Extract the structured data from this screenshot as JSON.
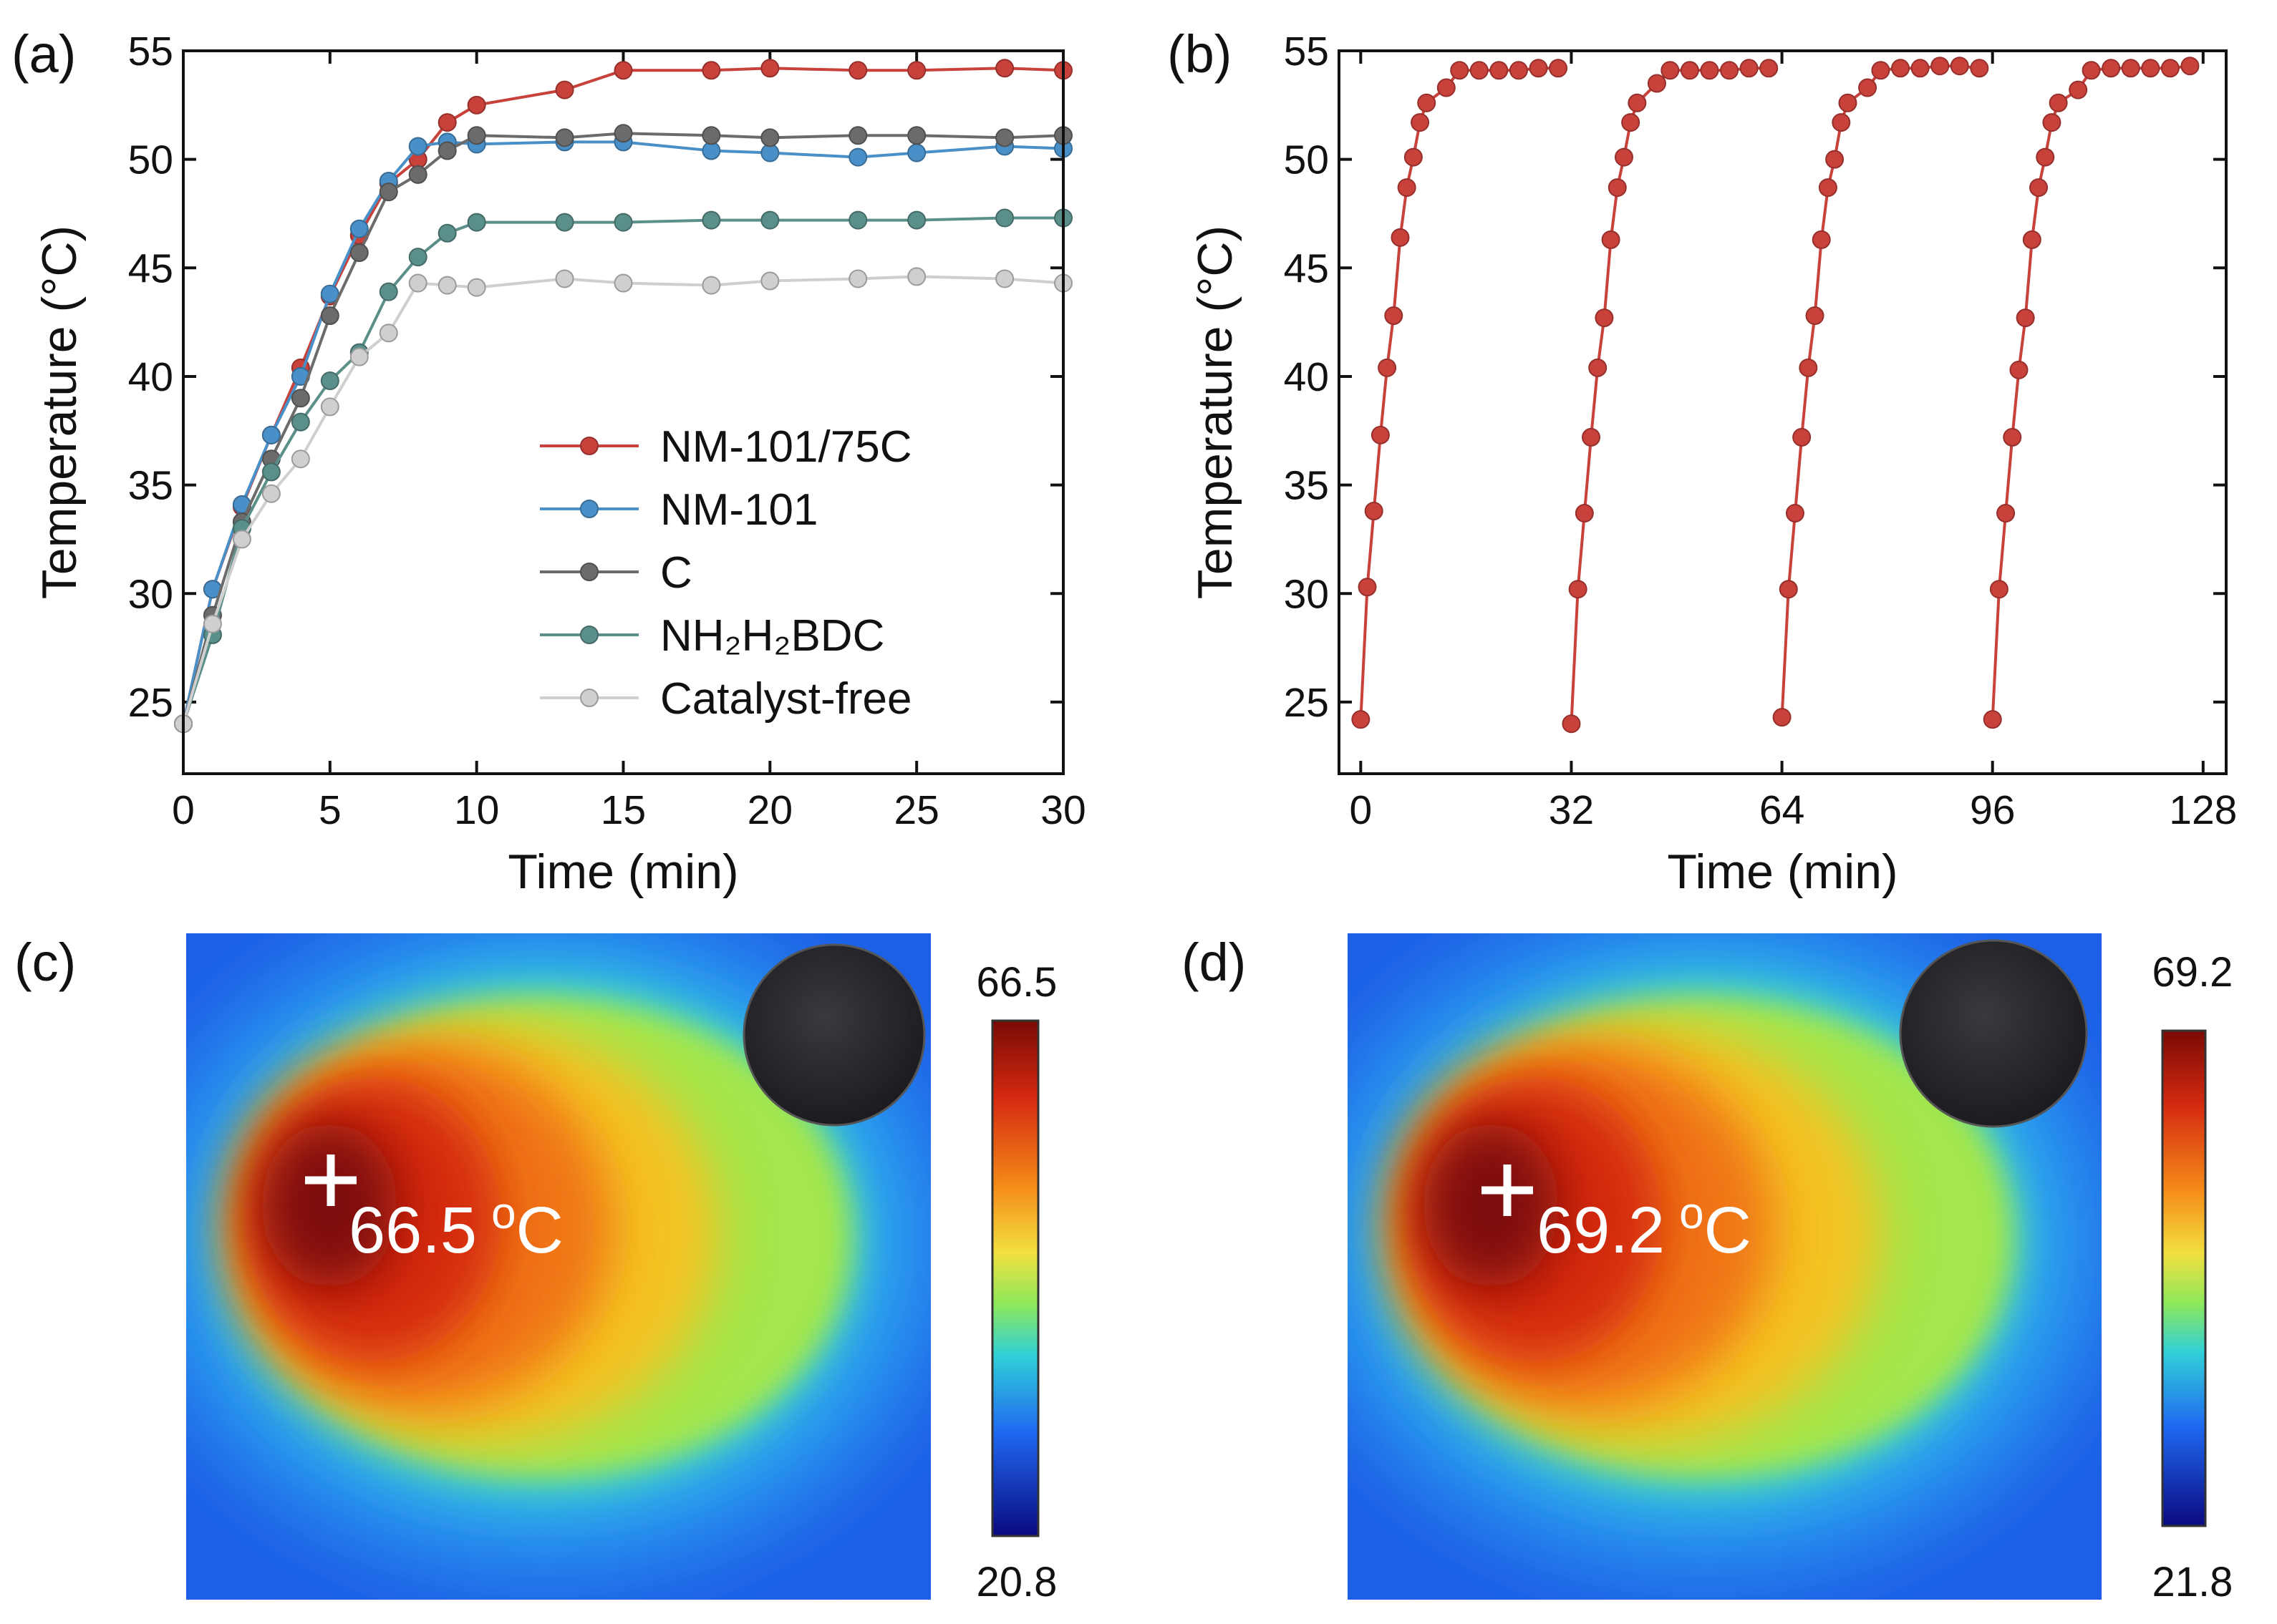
{
  "chart_data": [
    {
      "type": "line",
      "label": "(a)",
      "x_label": "Time (min)",
      "y_label": "Temperature (°C)",
      "x": [
        0,
        1,
        2,
        3,
        4,
        5,
        6,
        7,
        8,
        9,
        10,
        13,
        15,
        18,
        20,
        23,
        25,
        28,
        30
      ],
      "xlim": [
        0,
        30
      ],
      "xticks": [
        0,
        5,
        10,
        15,
        20,
        25,
        30
      ],
      "ylim": [
        21.7,
        55
      ],
      "yticks": [
        25,
        30,
        35,
        40,
        45,
        50,
        55
      ],
      "legend_position": "lower right",
      "series": [
        {
          "name": "NM-101/75C",
          "color": "#c8413b",
          "values": [
            24,
            30.2,
            34,
            37.3,
            40.4,
            43.7,
            46.5,
            48.9,
            50.0,
            51.7,
            52.5,
            53.2,
            54.1,
            54.1,
            54.2,
            54.1,
            54.1,
            54.2,
            54.1
          ]
        },
        {
          "name": "NM-101",
          "color": "#4a90c8",
          "values": [
            24,
            30.2,
            34.1,
            37.3,
            40.0,
            43.8,
            46.8,
            49.0,
            50.6,
            50.8,
            50.7,
            50.8,
            50.8,
            50.4,
            50.3,
            50.1,
            50.3,
            50.6,
            50.5
          ]
        },
        {
          "name": "C",
          "color": "#6b6b6b",
          "values": [
            24,
            29,
            33.3,
            36.2,
            39.0,
            42.8,
            45.7,
            48.5,
            49.3,
            50.4,
            51.1,
            51.0,
            51.2,
            51.1,
            51.0,
            51.1,
            51.1,
            51.0,
            51.1
          ]
        },
        {
          "name": "NH₂H₂BDC",
          "color": "#5b8f8a",
          "values": [
            24,
            28.1,
            33.0,
            35.6,
            37.9,
            39.8,
            41.1,
            43.9,
            45.5,
            46.6,
            47.1,
            47.1,
            47.1,
            47.2,
            47.2,
            47.2,
            47.2,
            47.3,
            47.3
          ]
        },
        {
          "name": "Catalyst-free",
          "color": "#cfcfcf",
          "values": [
            24,
            28.6,
            32.5,
            34.6,
            36.2,
            38.6,
            40.9,
            42.0,
            44.3,
            44.2,
            44.1,
            44.5,
            44.3,
            44.2,
            44.4,
            44.5,
            44.6,
            44.5,
            44.3
          ]
        }
      ]
    },
    {
      "type": "line",
      "label": "(b)",
      "x_label": "Time (min)",
      "y_label": "Temperature (°C)",
      "xlim": [
        -3.3,
        131.5
      ],
      "xticks": [
        0,
        32,
        64,
        96,
        128
      ],
      "ylim": [
        21.7,
        55
      ],
      "yticks": [
        25,
        30,
        35,
        40,
        45,
        50,
        55
      ],
      "series": [
        {
          "color": "#c8413b",
          "x": [
            0,
            1,
            2,
            3,
            4,
            5,
            6,
            7,
            8,
            9,
            10,
            13,
            15,
            18,
            21,
            24,
            27,
            30
          ],
          "values": [
            24.2,
            30.3,
            33.8,
            37.3,
            40.4,
            42.8,
            46.4,
            48.7,
            50.1,
            51.7,
            52.6,
            53.3,
            54.1,
            54.1,
            54.1,
            54.1,
            54.2,
            54.2
          ]
        },
        {
          "color": "#c8413b",
          "x": [
            32,
            33,
            34,
            35,
            36,
            37,
            38,
            39,
            40,
            41,
            42,
            45,
            47,
            50,
            53,
            56,
            59,
            62
          ],
          "values": [
            24.0,
            30.2,
            33.7,
            37.2,
            40.4,
            42.7,
            46.3,
            48.7,
            50.1,
            51.7,
            52.6,
            53.5,
            54.1,
            54.1,
            54.1,
            54.1,
            54.2,
            54.2
          ]
        },
        {
          "color": "#c8413b",
          "x": [
            64,
            65,
            66,
            67,
            68,
            69,
            70,
            71,
            72,
            73,
            74,
            77,
            79,
            82,
            85,
            88,
            91,
            94
          ],
          "values": [
            24.3,
            30.2,
            33.7,
            37.2,
            40.4,
            42.8,
            46.3,
            48.7,
            50.0,
            51.7,
            52.6,
            53.3,
            54.1,
            54.2,
            54.2,
            54.3,
            54.3,
            54.2
          ]
        },
        {
          "color": "#c8413b",
          "x": [
            96,
            97,
            98,
            99,
            100,
            101,
            102,
            103,
            104,
            105,
            106,
            109,
            111,
            114,
            117,
            120,
            123,
            126
          ],
          "values": [
            24.2,
            30.2,
            33.7,
            37.2,
            40.3,
            42.7,
            46.3,
            48.7,
            50.1,
            51.7,
            52.6,
            53.2,
            54.1,
            54.2,
            54.2,
            54.2,
            54.2,
            54.3
          ]
        }
      ]
    }
  ],
  "thermal_images": [
    {
      "label": "(c)",
      "colorbar_max": 66.5,
      "colorbar_min": 20.8,
      "spot_value": 66.5,
      "spot_unit_sup": "o",
      "spot_unit": "C"
    },
    {
      "label": "(d)",
      "colorbar_max": 69.2,
      "colorbar_min": 21.8,
      "spot_value": 69.2,
      "spot_unit_sup": "o",
      "spot_unit": "C"
    }
  ]
}
